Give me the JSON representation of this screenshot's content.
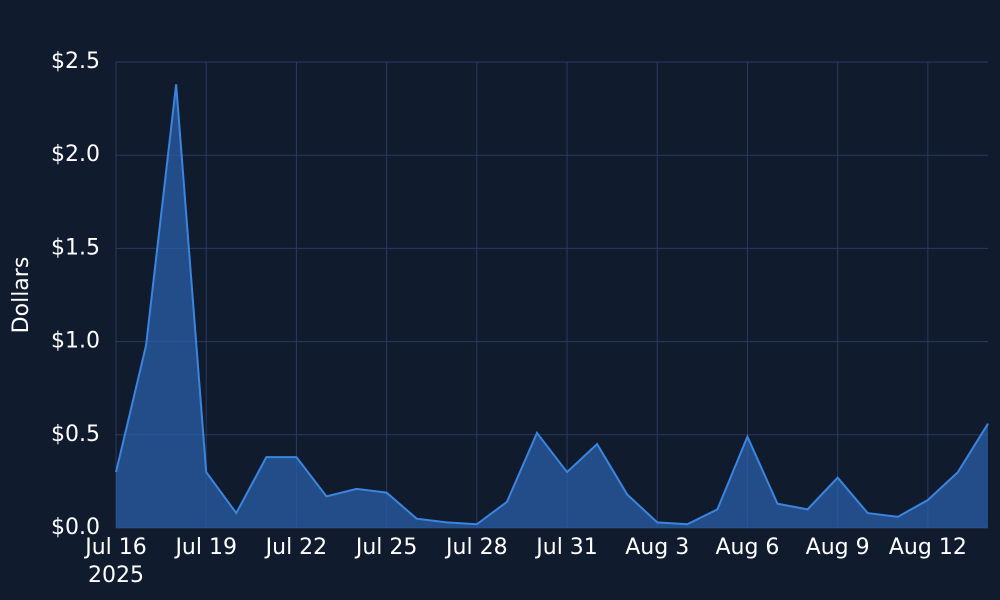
{
  "chart_data": {
    "type": "area",
    "y_label": "Dollars",
    "x_year_label": "2025",
    "x": [
      "2025-07-16",
      "2025-07-17",
      "2025-07-18",
      "2025-07-19",
      "2025-07-20",
      "2025-07-21",
      "2025-07-22",
      "2025-07-23",
      "2025-07-24",
      "2025-07-25",
      "2025-07-26",
      "2025-07-27",
      "2025-07-28",
      "2025-07-29",
      "2025-07-30",
      "2025-07-31",
      "2025-08-01",
      "2025-08-02",
      "2025-08-03",
      "2025-08-04",
      "2025-08-05",
      "2025-08-06",
      "2025-08-07",
      "2025-08-08",
      "2025-08-09",
      "2025-08-10",
      "2025-08-11",
      "2025-08-12",
      "2025-08-13",
      "2025-08-14"
    ],
    "values": [
      0.3,
      0.98,
      2.38,
      0.3,
      0.08,
      0.38,
      0.38,
      0.17,
      0.21,
      0.19,
      0.05,
      0.03,
      0.02,
      0.14,
      0.51,
      0.3,
      0.45,
      0.18,
      0.03,
      0.02,
      0.1,
      0.49,
      0.13,
      0.1,
      0.27,
      0.08,
      0.06,
      0.15,
      0.3,
      0.56
    ],
    "color": "#3a85e0",
    "fill_color": "#2a5fa8",
    "xlim": [
      "2025-07-16",
      "2025-08-14"
    ],
    "xticks": [
      {
        "value": "2025-07-16",
        "label": "Jul 16"
      },
      {
        "value": "2025-07-19",
        "label": "Jul 19"
      },
      {
        "value": "2025-07-22",
        "label": "Jul 22"
      },
      {
        "value": "2025-07-25",
        "label": "Jul 25"
      },
      {
        "value": "2025-07-28",
        "label": "Jul 28"
      },
      {
        "value": "2025-07-31",
        "label": "Jul 31"
      },
      {
        "value": "2025-08-03",
        "label": "Aug 3"
      },
      {
        "value": "2025-08-06",
        "label": "Aug 6"
      },
      {
        "value": "2025-08-09",
        "label": "Aug 9"
      },
      {
        "value": "2025-08-12",
        "label": "Aug 12"
      }
    ],
    "ylim": [
      0,
      2.5
    ],
    "yticks": [
      {
        "value": 0,
        "label": "$0.0"
      },
      {
        "value": 0.5,
        "label": "$0.5"
      },
      {
        "value": 1,
        "label": "$1.0"
      },
      {
        "value": 1.5,
        "label": "$1.5"
      },
      {
        "value": 2,
        "label": "$2.0"
      },
      {
        "value": 2.5,
        "label": "$2.5"
      }
    ],
    "grid": true
  }
}
